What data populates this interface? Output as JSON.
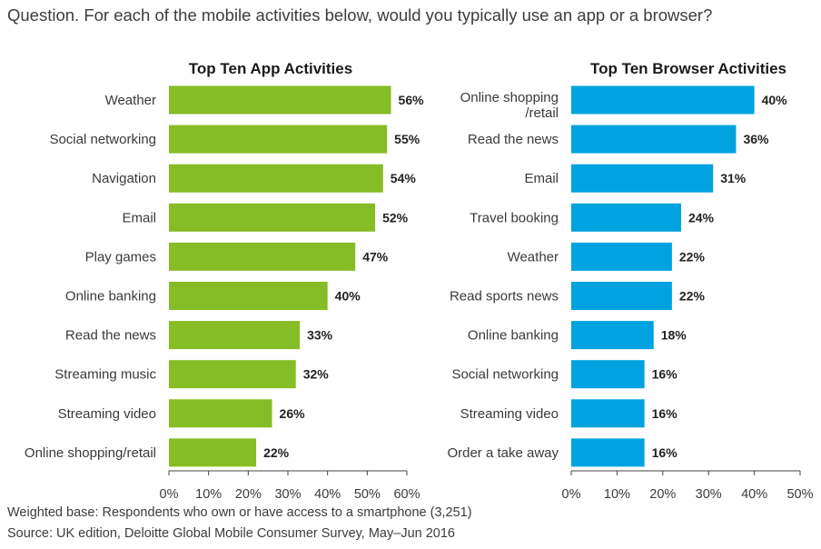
{
  "question": "Question. For each of the mobile activities below, would you typically use an app or a browser?",
  "footer": {
    "base": "Weighted base: Respondents who own or have access to a smartphone (3,251)",
    "source": "Source: UK edition, Deloitte Global Mobile Consumer Survey, May–Jun 2016"
  },
  "chart_data": [
    {
      "type": "bar",
      "orientation": "horizontal",
      "title": "Top Ten App Activities",
      "color": "#86bc25",
      "categories": [
        "Weather",
        "Social networking",
        "Navigation",
        "Email",
        "Play games",
        "Online banking",
        "Read the news",
        "Streaming music",
        "Streaming video",
        "Online shopping/retail"
      ],
      "values": [
        56,
        55,
        54,
        52,
        47,
        40,
        33,
        32,
        26,
        22
      ],
      "value_labels": [
        "56%",
        "55%",
        "54%",
        "52%",
        "47%",
        "40%",
        "33%",
        "32%",
        "26%",
        "22%"
      ],
      "xlim": [
        0,
        60
      ],
      "ticks": [
        0,
        10,
        20,
        30,
        40,
        50,
        60
      ],
      "tick_labels": [
        "0%",
        "10%",
        "20%",
        "30%",
        "40%",
        "50%",
        "60%"
      ],
      "grid": false
    },
    {
      "type": "bar",
      "orientation": "horizontal",
      "title": "Top Ten Browser Activities",
      "color": "#00a3e0",
      "categories": [
        "Online shopping\n/retail",
        "Read the news",
        "Email",
        "Travel booking",
        "Weather",
        "Read sports news",
        "Online banking",
        "Social networking",
        "Streaming video",
        "Order a take away"
      ],
      "values": [
        40,
        36,
        31,
        24,
        22,
        22,
        18,
        16,
        16,
        16
      ],
      "value_labels": [
        "40%",
        "36%",
        "31%",
        "24%",
        "22%",
        "22%",
        "18%",
        "16%",
        "16%",
        "16%"
      ],
      "xlim": [
        0,
        50
      ],
      "ticks": [
        0,
        10,
        20,
        30,
        40,
        50
      ],
      "tick_labels": [
        "0%",
        "10%",
        "20%",
        "30%",
        "40%",
        "50%"
      ],
      "grid": false
    }
  ]
}
